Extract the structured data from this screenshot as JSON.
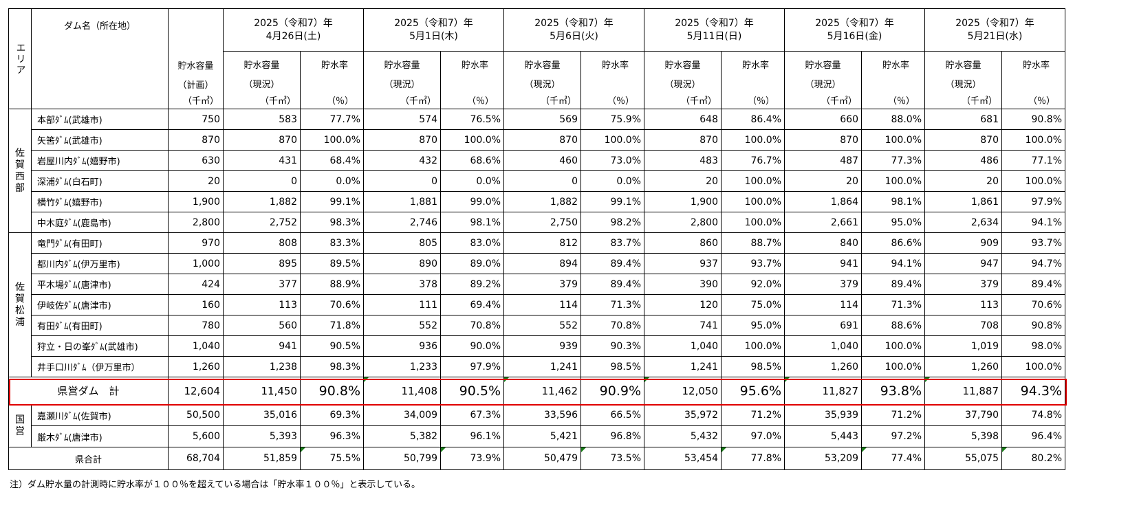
{
  "header": {
    "area": "エリア",
    "dam_name": "ダム名（所在地）",
    "capacity_plan": [
      "貯水容量",
      "（計画）",
      "（千㎥）"
    ],
    "capacity_now": [
      "貯水容量",
      "（現況）",
      "（千㎥）"
    ],
    "rate": [
      "貯水率",
      "（％）"
    ],
    "dates": [
      {
        "year": "2025（令和7）年",
        "day": "4月26日(土)"
      },
      {
        "year": "2025（令和7）年",
        "day": "5月1日(木)"
      },
      {
        "year": "2025（令和7）年",
        "day": "5月6日(火)"
      },
      {
        "year": "2025（令和7）年",
        "day": "5月11日(日)"
      },
      {
        "year": "2025（令和7）年",
        "day": "5月16日(金)"
      },
      {
        "year": "2025（令和7）年",
        "day": "5月21日(水)"
      }
    ]
  },
  "areas": {
    "west": [
      "佐",
      "賀",
      "西",
      "部"
    ],
    "matsuura": [
      "佐",
      "賀",
      "松",
      "浦"
    ],
    "national": [
      "国",
      "営"
    ]
  },
  "rows": [
    {
      "name": "本部ﾀﾞﾑ(武雄市)",
      "plan": "750",
      "vals": [
        "583",
        "77.7%",
        "574",
        "76.5%",
        "569",
        "75.9%",
        "648",
        "86.4%",
        "660",
        "88.0%",
        "681",
        "90.8%"
      ]
    },
    {
      "name": "矢筈ﾀﾞﾑ(武雄市)",
      "plan": "870",
      "vals": [
        "870",
        "100.0%",
        "870",
        "100.0%",
        "870",
        "100.0%",
        "870",
        "100.0%",
        "870",
        "100.0%",
        "870",
        "100.0%"
      ]
    },
    {
      "name": "岩屋川内ﾀﾞﾑ(嬉野市)",
      "plan": "630",
      "vals": [
        "431",
        "68.4%",
        "432",
        "68.6%",
        "460",
        "73.0%",
        "483",
        "76.7%",
        "487",
        "77.3%",
        "486",
        "77.1%"
      ]
    },
    {
      "name": "深浦ﾀﾞﾑ(白石町)",
      "plan": "20",
      "vals": [
        "0",
        "0.0%",
        "0",
        "0.0%",
        "0",
        "0.0%",
        "20",
        "100.0%",
        "20",
        "100.0%",
        "20",
        "100.0%"
      ]
    },
    {
      "name": "横竹ﾀﾞﾑ(嬉野市)",
      "plan": "1,900",
      "vals": [
        "1,882",
        "99.1%",
        "1,881",
        "99.0%",
        "1,882",
        "99.1%",
        "1,900",
        "100.0%",
        "1,864",
        "98.1%",
        "1,861",
        "97.9%"
      ]
    },
    {
      "name": "中木庭ﾀﾞﾑ(鹿島市)",
      "plan": "2,800",
      "vals": [
        "2,752",
        "98.3%",
        "2,746",
        "98.1%",
        "2,750",
        "98.2%",
        "2,800",
        "100.0%",
        "2,661",
        "95.0%",
        "2,634",
        "94.1%"
      ]
    },
    {
      "name": "竜門ﾀﾞﾑ(有田町)",
      "plan": "970",
      "vals": [
        "808",
        "83.3%",
        "805",
        "83.0%",
        "812",
        "83.7%",
        "860",
        "88.7%",
        "840",
        "86.6%",
        "909",
        "93.7%"
      ]
    },
    {
      "name": "都川内ﾀﾞﾑ(伊万里市)",
      "plan": "1,000",
      "vals": [
        "895",
        "89.5%",
        "890",
        "89.0%",
        "894",
        "89.4%",
        "937",
        "93.7%",
        "941",
        "94.1%",
        "947",
        "94.7%"
      ]
    },
    {
      "name": "平木場ﾀﾞﾑ(唐津市)",
      "plan": "424",
      "vals": [
        "377",
        "88.9%",
        "378",
        "89.2%",
        "379",
        "89.4%",
        "390",
        "92.0%",
        "379",
        "89.4%",
        "379",
        "89.4%"
      ]
    },
    {
      "name": "伊岐佐ﾀﾞﾑ(唐津市)",
      "plan": "160",
      "vals": [
        "113",
        "70.6%",
        "111",
        "69.4%",
        "114",
        "71.3%",
        "120",
        "75.0%",
        "114",
        "71.3%",
        "113",
        "70.6%"
      ]
    },
    {
      "name": "有田ﾀﾞﾑ(有田町)",
      "plan": "780",
      "vals": [
        "560",
        "71.8%",
        "552",
        "70.8%",
        "552",
        "70.8%",
        "741",
        "95.0%",
        "691",
        "88.6%",
        "708",
        "90.8%"
      ]
    },
    {
      "name": "狩立・日の峯ﾀﾞﾑ(武雄市)",
      "plan": "1,040",
      "vals": [
        "941",
        "90.5%",
        "936",
        "90.0%",
        "939",
        "90.3%",
        "1,040",
        "100.0%",
        "1,040",
        "100.0%",
        "1,019",
        "98.0%"
      ]
    },
    {
      "name": "井手口川ﾀﾞﾑ（伊万里市）",
      "plan": "1,260",
      "vals": [
        "1,238",
        "98.3%",
        "1,233",
        "97.9%",
        "1,241",
        "98.5%",
        "1,241",
        "98.5%",
        "1,260",
        "100.0%",
        "1,260",
        "100.0%"
      ]
    },
    {
      "name": "県営ダム　計",
      "plan": "12,604",
      "vals": [
        "11,450",
        "90.8%",
        "11,408",
        "90.5%",
        "11,462",
        "90.9%",
        "12,050",
        "95.6%",
        "11,827",
        "93.8%",
        "11,887",
        "94.3%"
      ]
    },
    {
      "name": "嘉瀬川ﾀﾞﾑ(佐賀市)",
      "plan": "50,500",
      "vals": [
        "35,016",
        "69.3%",
        "34,009",
        "67.3%",
        "33,596",
        "66.5%",
        "35,972",
        "71.2%",
        "35,939",
        "71.2%",
        "37,790",
        "74.8%"
      ]
    },
    {
      "name": "厳木ﾀﾞﾑ(唐津市)",
      "plan": "5,600",
      "vals": [
        "5,393",
        "96.3%",
        "5,382",
        "96.1%",
        "5,421",
        "96.8%",
        "5,432",
        "97.0%",
        "5,443",
        "97.2%",
        "5,398",
        "96.4%"
      ]
    },
    {
      "name": "県合計",
      "plan": "68,704",
      "vals": [
        "51,859",
        "75.5%",
        "50,799",
        "73.9%",
        "50,479",
        "73.5%",
        "53,454",
        "77.8%",
        "53,209",
        "77.4%",
        "55,075",
        "80.2%"
      ]
    }
  ],
  "footnote": "注）ダム貯水量の計測時に貯水率が１００％を超えている場合は「貯水率１００％」と表示している。",
  "colors": {
    "highlight_border": "#e00000",
    "marker": "#1b7f1b"
  }
}
